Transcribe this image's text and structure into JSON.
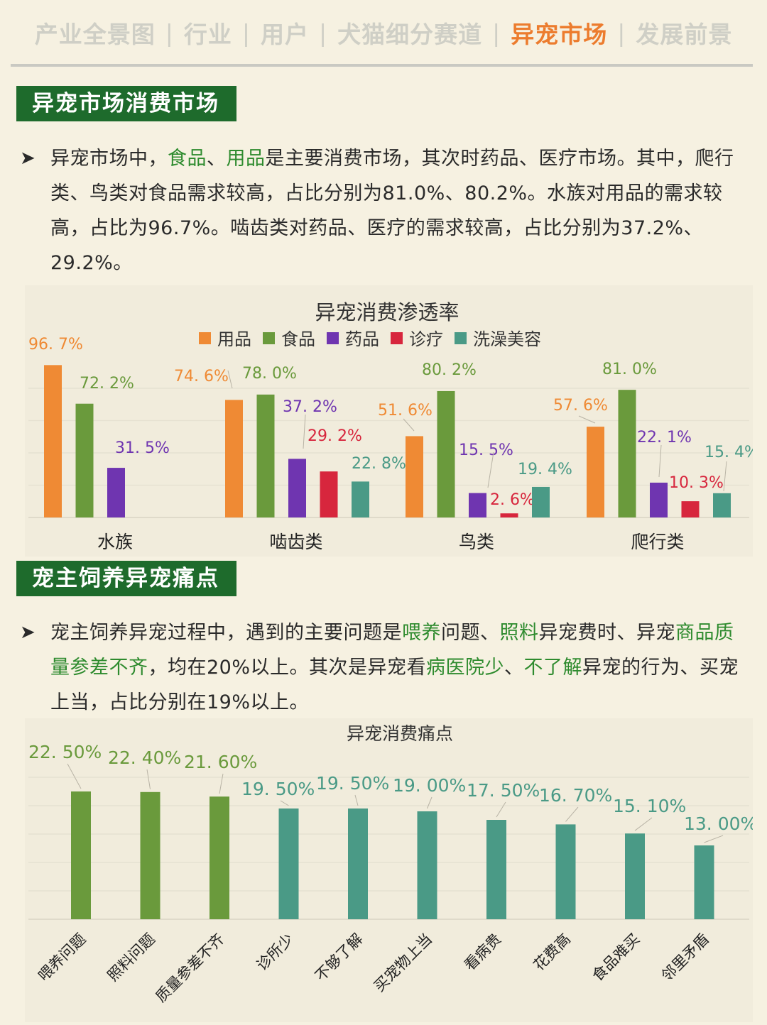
{
  "nav": {
    "items": [
      "产业全景图",
      "行业",
      "用户",
      "犬猫细分赛道",
      "异宠市场",
      "发展前景"
    ],
    "active_index": 4,
    "separator": "|"
  },
  "section1": {
    "tag": "异宠市场消费市场",
    "bullet": "➤",
    "paragraph": [
      {
        "t": "异宠市场中，"
      },
      {
        "t": "食品",
        "hl": true
      },
      {
        "t": "、"
      },
      {
        "t": "用品",
        "hl": true
      },
      {
        "t": "是主要消费市场，其次时药品、医疗市场。其中，爬行类、鸟类对食品需求较高，占比分别为81.0%、80.2%。水族对用品的需求较高，占比为96.7%。啮齿类对药品、医疗的需求较高，占比分别为37.2%、29.2%。"
      }
    ]
  },
  "section2": {
    "tag": "宠主饲养异宠痛点",
    "bullet": "➤",
    "paragraph": [
      {
        "t": "宠主饲养异宠过程中，遇到的主要问题是"
      },
      {
        "t": "喂养",
        "hl": true
      },
      {
        "t": "问题、"
      },
      {
        "t": "照料",
        "hl": true
      },
      {
        "t": "异宠费时、异宠"
      },
      {
        "t": "商品质量参差不齐",
        "hl": true
      },
      {
        "t": "，均在20%以上。其次是异宠看"
      },
      {
        "t": "病医院少",
        "hl": true
      },
      {
        "t": "、"
      },
      {
        "t": "不了解",
        "hl": true
      },
      {
        "t": "异宠的行为、买宠上当，占比分别在19%以上。"
      }
    ]
  },
  "colors": {
    "accent_orange": "#ec7c2e",
    "highlight_green": "#2e8b2e",
    "tag_green": "#1e6b2c",
    "bar_green": "#6a9a3c",
    "bar_teal": "#4a9a86",
    "bar_purple": "#6f35b0",
    "bar_red": "#d7263d",
    "bar_orange": "#ef8a34"
  },
  "chart_data": [
    {
      "type": "bar",
      "title": "异宠消费渗透率",
      "legend_position": "top",
      "categories": [
        "水族",
        "啮齿类",
        "鸟类",
        "爬行类"
      ],
      "ylim": [
        0,
        100
      ],
      "grid": true,
      "series": [
        {
          "name": "用品",
          "color": "#ef8a34",
          "values": [
            96.7,
            74.6,
            51.6,
            57.6
          ],
          "labels": [
            "96. 7%",
            "74. 6%",
            "51. 6%",
            "57. 6%"
          ]
        },
        {
          "name": "食品",
          "color": "#6a9a3c",
          "values": [
            72.2,
            78.0,
            80.2,
            81.0
          ],
          "labels": [
            "72. 2%",
            "78. 0%",
            "80. 2%",
            "81. 0%"
          ]
        },
        {
          "name": "药品",
          "color": "#6f35b0",
          "values": [
            31.5,
            37.2,
            15.5,
            22.1
          ],
          "labels": [
            "31. 5%",
            "37. 2%",
            "15. 5%",
            "22. 1%"
          ]
        },
        {
          "name": "诊疗",
          "color": "#d7263d",
          "values": [
            null,
            29.2,
            2.6,
            10.3
          ],
          "labels": [
            "",
            "29. 2%",
            "2. 6%",
            "10. 3%"
          ]
        },
        {
          "name": "洗澡美容",
          "color": "#4a9a86",
          "values": [
            null,
            22.8,
            19.4,
            15.4
          ],
          "labels": [
            "",
            "22. 8%",
            "19. 4%",
            "15. 4%"
          ]
        }
      ]
    },
    {
      "type": "bar",
      "title": "异宠消费痛点",
      "categories": [
        "喂养问题",
        "照料问题",
        "质量参差不齐",
        "诊所少",
        "不够了解",
        "买宠物上当",
        "看病贵",
        "花费高",
        "食品难买",
        "邻里矛盾"
      ],
      "values": [
        22.5,
        22.4,
        21.6,
        19.5,
        19.5,
        19.0,
        17.5,
        16.7,
        15.1,
        13.0
      ],
      "labels": [
        "22. 50%",
        "22. 40%",
        "21. 60%",
        "19. 50%",
        "19. 50%",
        "19. 00%",
        "17. 50%",
        "16. 70%",
        "15. 10%",
        "13. 00%"
      ],
      "colors": [
        "#6a9a3c",
        "#6a9a3c",
        "#6a9a3c",
        "#4a9a86",
        "#4a9a86",
        "#4a9a86",
        "#4a9a86",
        "#4a9a86",
        "#4a9a86",
        "#4a9a86"
      ],
      "ylim": [
        0,
        30
      ],
      "grid": true
    }
  ]
}
